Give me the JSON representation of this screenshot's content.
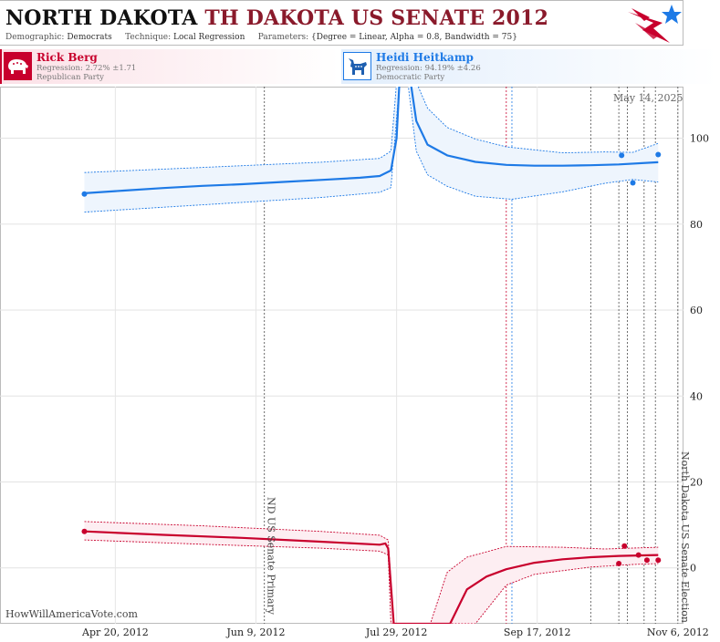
{
  "title": {
    "state": "NORTH DAKOTA",
    "race": "TH DAKOTA US SENATE 2012"
  },
  "subtitle": {
    "demographic_label": "Demographic:",
    "demographic": "Democrats",
    "technique_label": "Technique:",
    "technique": "Local Regression",
    "parameters_label": "Parameters:",
    "parameters": "{Degree = Linear, Alpha = 0.8, Bandwidth = 75}"
  },
  "candidates": [
    {
      "name": "Rick Berg",
      "regression": "Regression: 2.72% ±1.71",
      "party": "Republican Party",
      "color": "#c8002d",
      "icon": "elephant-icon"
    },
    {
      "name": "Heidi Heitkamp",
      "regression": "Regression: 94.19% ±4.26",
      "party": "Democratic Party",
      "color": "#1e7ae6",
      "icon": "donkey-icon"
    }
  ],
  "date_stamp": "May 14, 2025",
  "watermark": "HowWillAmericaVote.com",
  "chart_data": {
    "type": "line",
    "x_ticks": [
      "Apr 20, 2012",
      "Jun 9, 2012",
      "Jul 29, 2012",
      "Sep 17, 2012",
      "Nov 6, 2012"
    ],
    "x_range": [
      "2012-03-10",
      "2012-11-08"
    ],
    "y_ticks": [
      0,
      20,
      40,
      60,
      80,
      100
    ],
    "ylim": [
      -13,
      112
    ],
    "grid": true,
    "events": [
      {
        "date": "2012-06-12",
        "label": "ND US Senate Primary"
      },
      {
        "date": "2012-11-06",
        "label": "North Dakota US Senate Election"
      }
    ],
    "poll_markers_red": [
      "2012-09-06"
    ],
    "poll_markers_blue": [
      "2012-09-08"
    ],
    "poll_markers_other": [
      "2012-10-06",
      "2012-10-16",
      "2012-10-19",
      "2012-10-25",
      "2012-10-29"
    ],
    "series": [
      {
        "name": "Heidi Heitkamp",
        "color": "#1e7ae6",
        "points": [
          [
            "2012-04-09",
            87.0
          ],
          [
            "2012-10-30",
            96.2
          ],
          [
            "2012-10-17",
            96.0
          ],
          [
            "2012-10-21",
            89.6
          ]
        ],
        "fit": [
          [
            "2012-04-09",
            87.2
          ],
          [
            "2012-04-23",
            87.8
          ],
          [
            "2012-05-07",
            88.4
          ],
          [
            "2012-05-21",
            88.9
          ],
          [
            "2012-06-04",
            89.3
          ],
          [
            "2012-06-18",
            89.8
          ],
          [
            "2012-07-02",
            90.3
          ],
          [
            "2012-07-16",
            90.8
          ],
          [
            "2012-07-23",
            91.2
          ],
          [
            "2012-07-27",
            92.5
          ],
          [
            "2012-07-29",
            100
          ],
          [
            "2012-07-30",
            113
          ],
          [
            "2012-08-03",
            113
          ],
          [
            "2012-08-05",
            104
          ],
          [
            "2012-08-09",
            98.5
          ],
          [
            "2012-08-16",
            96.0
          ],
          [
            "2012-08-26",
            94.5
          ],
          [
            "2012-09-06",
            93.8
          ],
          [
            "2012-09-16",
            93.6
          ],
          [
            "2012-09-26",
            93.6
          ],
          [
            "2012-10-06",
            93.7
          ],
          [
            "2012-10-16",
            93.9
          ],
          [
            "2012-10-30",
            94.4
          ]
        ],
        "band_upper": [
          [
            "2012-04-09",
            92.0
          ],
          [
            "2012-05-21",
            93.2
          ],
          [
            "2012-07-02",
            94.4
          ],
          [
            "2012-07-23",
            95.3
          ],
          [
            "2012-07-27",
            97
          ],
          [
            "2012-07-29",
            113
          ],
          [
            "2012-08-05",
            113
          ],
          [
            "2012-08-09",
            107
          ],
          [
            "2012-08-16",
            102.5
          ],
          [
            "2012-08-26",
            99.8
          ],
          [
            "2012-09-06",
            98.0
          ],
          [
            "2012-09-26",
            96.6
          ],
          [
            "2012-10-11",
            96.8
          ],
          [
            "2012-10-21",
            96.7
          ],
          [
            "2012-10-30",
            98.8
          ]
        ],
        "band_lower": [
          [
            "2012-04-09",
            82.8
          ],
          [
            "2012-05-21",
            84.5
          ],
          [
            "2012-07-02",
            86.2
          ],
          [
            "2012-07-23",
            87.4
          ],
          [
            "2012-07-27",
            88.5
          ],
          [
            "2012-07-30",
            113
          ],
          [
            "2012-08-02",
            113
          ],
          [
            "2012-08-05",
            97
          ],
          [
            "2012-08-09",
            91.5
          ],
          [
            "2012-08-16",
            88.8
          ],
          [
            "2012-08-26",
            86.5
          ],
          [
            "2012-09-08",
            85.8
          ],
          [
            "2012-09-26",
            87.5
          ],
          [
            "2012-10-11",
            89.5
          ],
          [
            "2012-10-21",
            90.4
          ],
          [
            "2012-10-30",
            89.8
          ]
        ]
      },
      {
        "name": "Rick Berg",
        "color": "#c8002d",
        "points": [
          [
            "2012-04-09",
            8.5
          ],
          [
            "2012-10-18",
            5.1
          ],
          [
            "2012-10-16",
            1.0
          ],
          [
            "2012-10-23",
            3.0
          ],
          [
            "2012-10-26",
            1.8
          ],
          [
            "2012-10-30",
            1.8
          ]
        ],
        "fit": [
          [
            "2012-04-09",
            8.5
          ],
          [
            "2012-05-07",
            7.7
          ],
          [
            "2012-06-04",
            7.0
          ],
          [
            "2012-07-02",
            6.1
          ],
          [
            "2012-07-23",
            5.4
          ],
          [
            "2012-07-25",
            5.7
          ],
          [
            "2012-07-26",
            4.5
          ],
          [
            "2012-07-28",
            -13
          ],
          [
            "2012-08-17",
            -13
          ],
          [
            "2012-08-23",
            -5
          ],
          [
            "2012-08-30",
            -2
          ],
          [
            "2012-09-06",
            -0.3
          ],
          [
            "2012-09-16",
            1.2
          ],
          [
            "2012-09-26",
            2.0
          ],
          [
            "2012-10-06",
            2.5
          ],
          [
            "2012-10-16",
            2.8
          ],
          [
            "2012-10-30",
            3.0
          ]
        ],
        "band_upper": [
          [
            "2012-04-09",
            10.8
          ],
          [
            "2012-05-21",
            9.8
          ],
          [
            "2012-07-02",
            8.5
          ],
          [
            "2012-07-23",
            7.6
          ],
          [
            "2012-07-26",
            6.5
          ],
          [
            "2012-07-28",
            -13
          ],
          [
            "2012-08-10",
            -13
          ],
          [
            "2012-08-16",
            -1
          ],
          [
            "2012-08-23",
            2.5
          ],
          [
            "2012-09-06",
            5
          ],
          [
            "2012-09-26",
            4.8
          ],
          [
            "2012-10-11",
            4.4
          ],
          [
            "2012-10-30",
            4.8
          ]
        ],
        "band_lower": [
          [
            "2012-04-09",
            6.5
          ],
          [
            "2012-05-21",
            5.5
          ],
          [
            "2012-07-02",
            4.6
          ],
          [
            "2012-07-23",
            3.9
          ],
          [
            "2012-07-26",
            3.0
          ],
          [
            "2012-07-27",
            -13
          ],
          [
            "2012-08-26",
            -13
          ],
          [
            "2012-09-06",
            -4
          ],
          [
            "2012-09-16",
            -1.5
          ],
          [
            "2012-10-06",
            0.2
          ],
          [
            "2012-10-21",
            0.8
          ],
          [
            "2012-10-30",
            1.0
          ]
        ]
      }
    ]
  }
}
